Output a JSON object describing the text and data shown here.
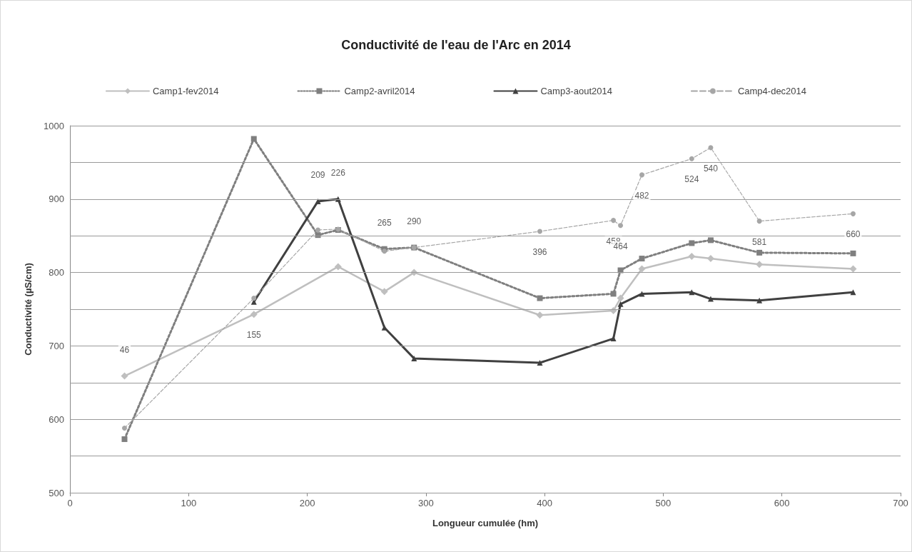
{
  "chart_data": {
    "type": "line",
    "title": "Conductivité de l'eau de l'Arc en 2014",
    "xlabel": "Longueur cumulée (hm)",
    "ylabel": "Conductivité (µS/cm)",
    "xlim": [
      0,
      700
    ],
    "xticks": [
      0,
      100,
      200,
      300,
      400,
      500,
      600,
      700
    ],
    "ylim": [
      500,
      1000
    ],
    "yticks": [
      500,
      {
        "value": 550,
        "label": null
      },
      600,
      {
        "value": 650,
        "label": null
      },
      700,
      {
        "value": 750,
        "label": null
      },
      800,
      {
        "value": 850,
        "label": null
      },
      900,
      {
        "value": 950,
        "label": null
      },
      1000
    ],
    "grid": "y",
    "legend": "top",
    "series": [
      {
        "name": "Camp1-fev2014",
        "color": "#bfbfbf",
        "marker": "diamond",
        "line_style": "solid",
        "x": [
          46,
          155,
          226,
          265,
          290,
          396,
          458,
          464,
          482,
          524,
          540,
          581,
          660
        ],
        "values": [
          659,
          743,
          808,
          774,
          800,
          742,
          748,
          765,
          805,
          822,
          819,
          811,
          805
        ]
      },
      {
        "name": "Camp2-avril2014",
        "color": "#7f7f7f",
        "marker": "square",
        "line_style": "dotted",
        "x": [
          46,
          155,
          209,
          226,
          265,
          290,
          396,
          458,
          464,
          482,
          524,
          540,
          581,
          660
        ],
        "values": [
          573,
          982,
          851,
          858,
          832,
          834,
          765,
          771,
          803,
          819,
          840,
          844,
          827,
          826
        ]
      },
      {
        "name": "Camp3-aout2014",
        "color": "#404040",
        "marker": "triangle",
        "line_style": "solid",
        "x": [
          155,
          209,
          226,
          265,
          290,
          396,
          458,
          464,
          482,
          524,
          540,
          581,
          660
        ],
        "values": [
          760,
          897,
          900,
          725,
          683,
          677,
          710,
          757,
          771,
          773,
          764,
          762,
          773
        ]
      },
      {
        "name": "Camp4-dec2014",
        "color": "#a6a6a6",
        "marker": "circle",
        "line_style": "dashed",
        "x": [
          46,
          155,
          209,
          226,
          265,
          290,
          396,
          458,
          464,
          482,
          524,
          540,
          581,
          660
        ],
        "values": [
          588,
          765,
          858,
          859,
          829,
          834,
          856,
          871,
          864,
          933,
          955,
          970,
          870,
          880
        ]
      }
    ],
    "annotations": [
      {
        "text": "46",
        "x": 46,
        "y": 659
      },
      {
        "text": "155",
        "x": 155,
        "y": 743
      },
      {
        "text": "209",
        "x": 209,
        "y": 897
      },
      {
        "text": "226",
        "x": 226,
        "y": 900
      },
      {
        "text": "265",
        "x": 265,
        "y": 832
      },
      {
        "text": "290",
        "x": 290,
        "y": 834
      },
      {
        "text": "396",
        "x": 396,
        "y": 856
      },
      {
        "text": "458",
        "x": 458,
        "y": 871
      },
      {
        "text": "464",
        "x": 464,
        "y": 864
      },
      {
        "text": "482",
        "x": 482,
        "y": 933
      },
      {
        "text": "524",
        "x": 524,
        "y": 955
      },
      {
        "text": "540",
        "x": 540,
        "y": 970
      },
      {
        "text": "581",
        "x": 581,
        "y": 870
      },
      {
        "text": "660",
        "x": 660,
        "y": 880
      }
    ]
  }
}
